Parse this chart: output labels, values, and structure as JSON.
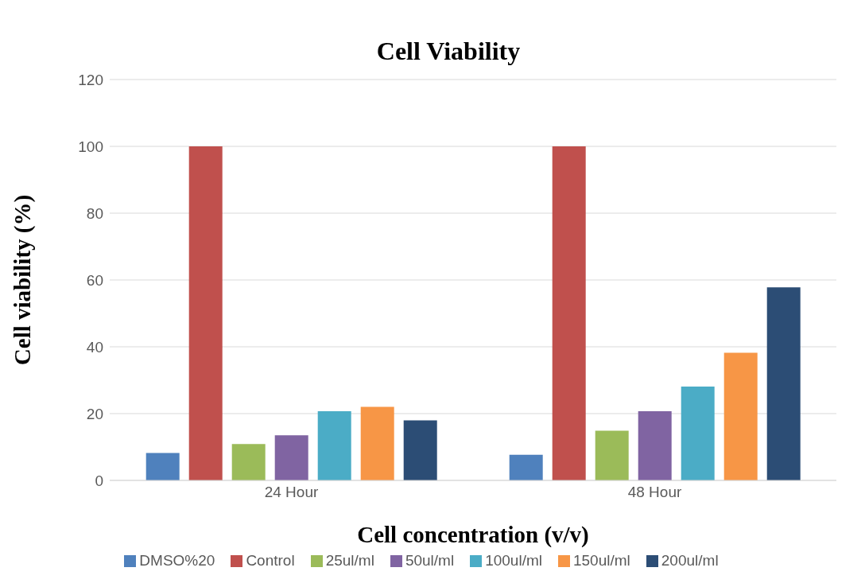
{
  "chart_data": {
    "type": "bar",
    "title": "Cell Viability",
    "xlabel": "Cell concentration (v/v)",
    "ylabel": "Cell viability (%)",
    "categories": [
      "24 Hour",
      "48 Hour"
    ],
    "series": [
      {
        "name": "DMSO%20",
        "color": "#4f81bd",
        "values": [
          8.2,
          7.7
        ]
      },
      {
        "name": "Control",
        "color": "#c0504d",
        "values": [
          100,
          100
        ]
      },
      {
        "name": "25ul/ml",
        "color": "#9bbb59",
        "values": [
          10.9,
          14.9
        ]
      },
      {
        "name": "50ul/ml",
        "color": "#8064a2",
        "values": [
          13.5,
          20.7
        ]
      },
      {
        "name": "100ul/ml",
        "color": "#4bacc6",
        "values": [
          20.7,
          28.1
        ]
      },
      {
        "name": "150ul/ml",
        "color": "#f79646",
        "values": [
          22,
          38.2
        ]
      },
      {
        "name": "200ul/ml",
        "color": "#2c4d75",
        "values": [
          18,
          57.8
        ]
      }
    ],
    "ylim": [
      0,
      120
    ],
    "yticks": [
      0,
      20,
      40,
      60,
      80,
      100,
      120
    ],
    "grid": "y",
    "legend": "bottom"
  }
}
